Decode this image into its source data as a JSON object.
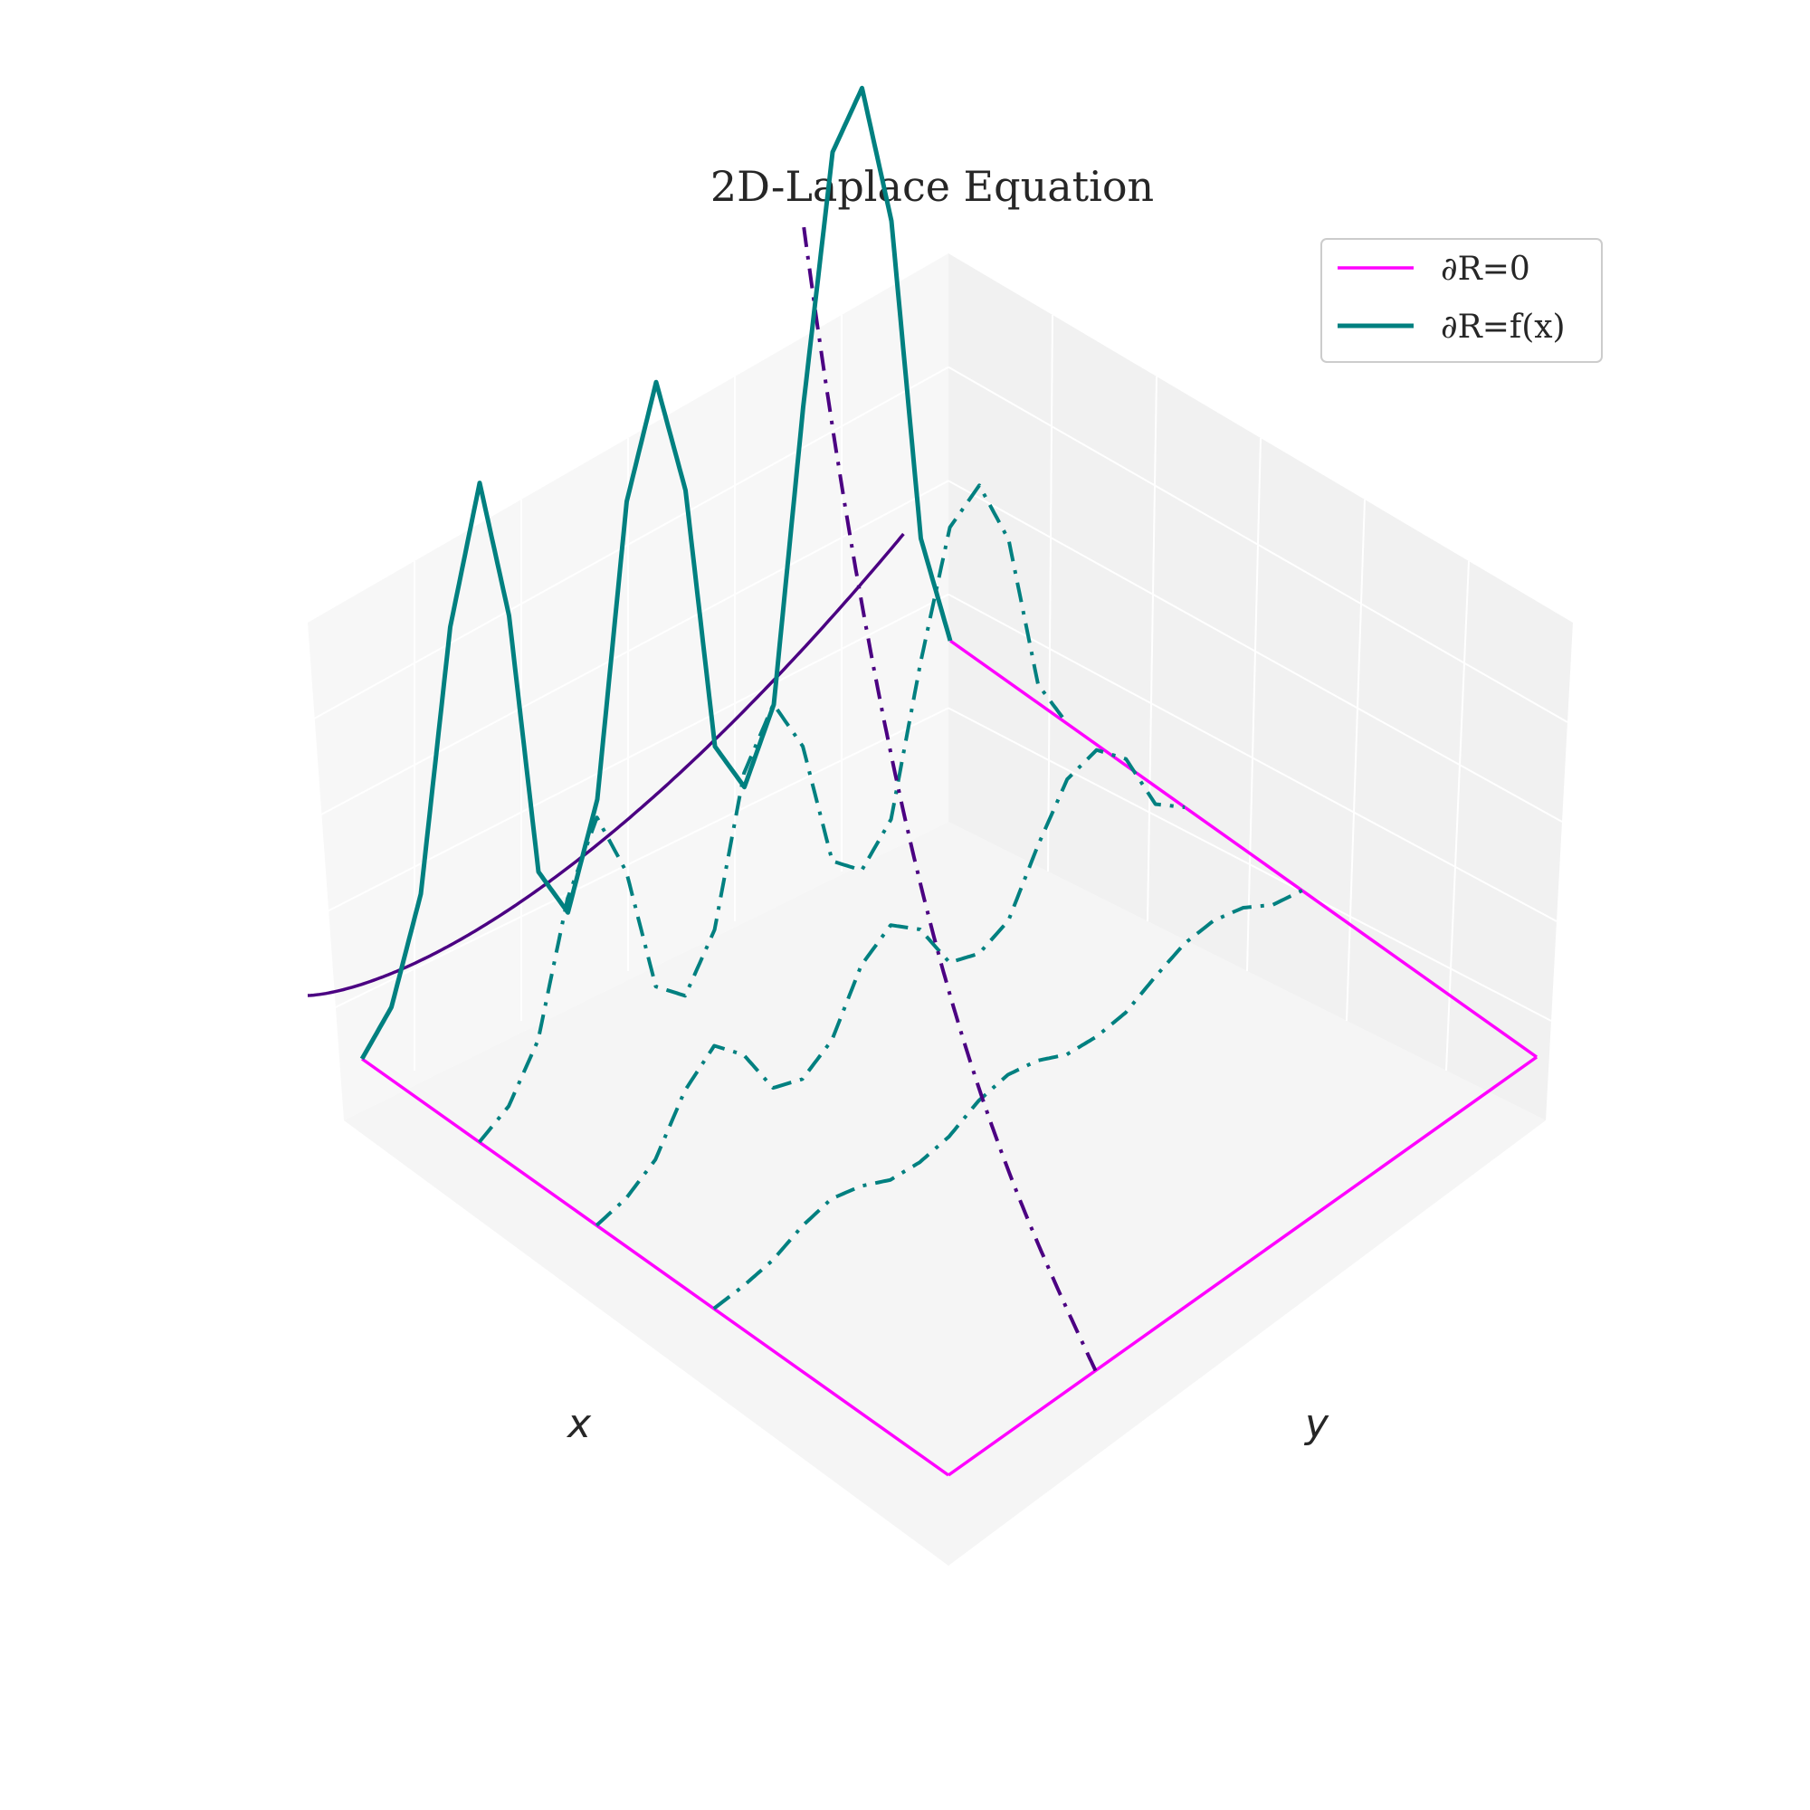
{
  "chart_data": {
    "type": "surface3d",
    "title": "2D-Laplace Equation",
    "xlabel": "x",
    "ylabel": "y",
    "zlabel": "",
    "xlim": [
      0,
      1
    ],
    "ylim": [
      0,
      1
    ],
    "zlim": [
      0,
      1
    ],
    "grid": true,
    "legend_position": "top-right",
    "colormap": "bwr",
    "legend": [
      {
        "label": "∂R=0",
        "color": "#ff00ff",
        "style": "solid"
      },
      {
        "label": "∂R=f(x)",
        "color": "#008080",
        "style": "solid"
      }
    ],
    "boundary_zero": {
      "color": "#ff00ff",
      "edges": [
        "x=0",
        "y=0",
        "y=1"
      ]
    },
    "boundary_fx": {
      "color": "#008080",
      "edge": "x=1",
      "y": [
        0,
        0.05,
        0.1,
        0.15,
        0.2,
        0.25,
        0.3,
        0.35,
        0.4,
        0.45,
        0.5,
        0.55,
        0.6,
        0.65,
        0.7,
        0.75,
        0.8,
        0.85,
        0.9,
        0.95,
        1
      ],
      "z": [
        0,
        0.05,
        0.2,
        0.6,
        0.8,
        0.55,
        0.1,
        0,
        0.15,
        0.6,
        0.76,
        0.55,
        0.1,
        0,
        0.1,
        0.55,
        0.93,
        1.0,
        0.75,
        0.2,
        0
      ]
    },
    "cross_sections": {
      "color": "#008080",
      "style": "dashdot",
      "x_levels": [
        0.8,
        0.6,
        0.4
      ]
    },
    "diagonal_curve": {
      "color": "#4b0082",
      "style": "dashdot"
    },
    "projection_curve": {
      "color": "#4b0082",
      "style": "solid",
      "plane": "y=0"
    }
  }
}
